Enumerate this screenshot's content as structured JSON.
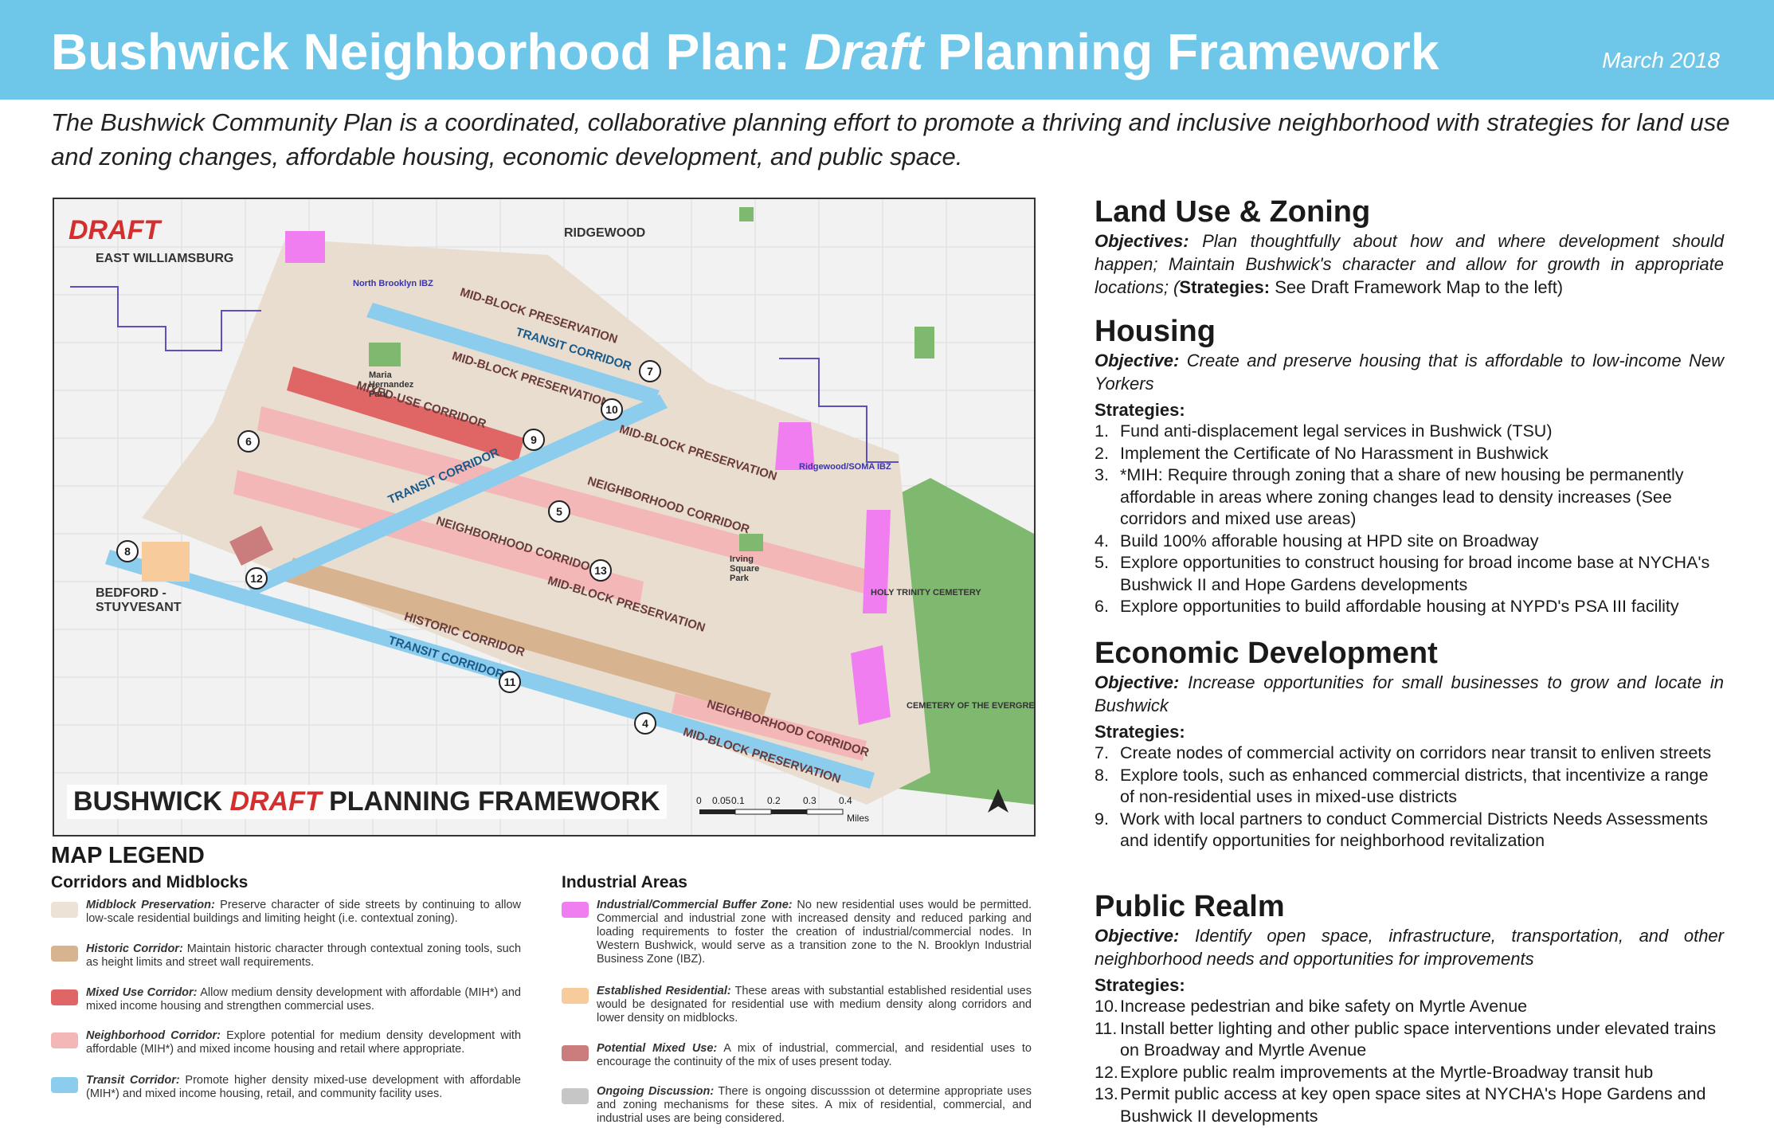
{
  "header": {
    "title_pre": "Bushwick Neighborhood Plan: ",
    "title_em": "Draft",
    "title_post": " Planning Framework",
    "date": "March 2018"
  },
  "intro": "The Bushwick Community Plan is a coordinated, collaborative planning effort to promote a thriving and inclusive neighborhood with strategies for land use and zoning changes, affordable housing, economic development, and public space.",
  "map": {
    "draft_tag": "DRAFT",
    "footer_pre": "BUSHWICK ",
    "footer_em": "DRAFT",
    "footer_post": " PLANNING FRAMEWORK",
    "place_labels": {
      "east_williamsburg": "EAST WILLIAMSBURG",
      "ridgewood": "RIDGEWOOD",
      "bed_stuy": "BEDFORD - STUYVESANT",
      "cemetery_evergreens": "CEMETERY OF THE EVERGREENS",
      "holy_trinity": "HOLY TRINITY CEMETERY",
      "maria_hernandez": "Maria Hernandez Park",
      "irving_square": "Irving Square Park",
      "ridgewood_soma": "Ridgewood/SOMA IBZ",
      "north_brooklyn_ibz": "North Brooklyn IBZ"
    },
    "corridor_labels": {
      "mid_block_1": "MID-BLOCK PRESERVATION",
      "transit_1": "TRANSIT CORRIDOR",
      "mid_block_2": "MID-BLOCK PRESERVATION",
      "mixed_use": "MIXED-USE CORRIDOR",
      "mid_block_3": "MID-BLOCK PRESERVATION",
      "neighborhood_1": "NEIGHBORHOOD CORRIDOR",
      "transit_2": "TRANSIT CORRIDOR",
      "neighborhood_2": "NEIGHBORHOOD CORRIDOR",
      "mid_block_4": "MID-BLOCK PRESERVATION",
      "historic": "HISTORIC CORRIDOR",
      "transit_3": "TRANSIT CORRIDOR",
      "neighborhood_3": "NEIGHBORHOOD CORRIDOR",
      "mid_block_5": "MID-BLOCK PRESERVATION"
    },
    "markers": [
      "4",
      "5",
      "6",
      "7",
      "8",
      "9",
      "10",
      "11",
      "12",
      "13"
    ],
    "scale": {
      "ticks": [
        "0",
        "0.05",
        "0.1",
        "0.2",
        "0.3",
        "0.4"
      ],
      "unit": "Miles"
    }
  },
  "legend": {
    "heading": "MAP LEGEND",
    "left_sub": "Corridors and Midblocks",
    "right_sub": "Industrial Areas",
    "colors": {
      "midblock": "#ece2d6",
      "historic": "#d7b48f",
      "mixed_use": "#e06565",
      "neighborhood": "#f4b7b7",
      "transit": "#8ccdee",
      "buffer": "#f07ef0",
      "established": "#f8cb9c",
      "potential": "#cb7d7d",
      "ongoing": "#c6c6c6"
    },
    "left_items": [
      {
        "label": "Midblock Preservation:",
        "text": " Preserve character of side streets by continuing to allow low-scale residential buildings and limiting height (i.e. contextual zoning)."
      },
      {
        "label": "Historic Corridor:",
        "text": " Maintain historic character through contextual zoning tools, such as height limits and street wall requirements."
      },
      {
        "label": "Mixed Use Corridor:",
        "text": " Allow medium density development with affordable (MIH*) and mixed income housing and strengthen commercial uses."
      },
      {
        "label": "Neighborhood Corridor:",
        "text": " Explore potential for medium density development with affordable (MIH*) and mixed income housing and retail where appropriate."
      },
      {
        "label": "Transit Corridor:",
        "text": " Promote higher density mixed-use development with affordable (MIH*) and mixed income housing, retail, and community facility uses."
      }
    ],
    "right_items": [
      {
        "label": "Industrial/Commercial Buffer Zone:",
        "text": " No new residential uses would be permitted. Commercial and industrial zone with increased density and reduced parking and loading requirements to foster the creation of industrial/commercial nodes. In Western Bushwick, would serve as a transition zone to the N. Brooklyn Industrial Business Zone (IBZ)."
      },
      {
        "label": "Established Residential:",
        "text": " These areas with substantial established residential uses would be designated for residential use with medium density along corridors and lower density on midblocks."
      },
      {
        "label": "Potential Mixed Use:",
        "text": " A mix of industrial, commercial, and residential uses to encourage the continuity of the mix of uses present today."
      },
      {
        "label": "Ongoing Discussion:",
        "text": " There is ongoing discusssion ot determine appropriate uses and zoning mechanisms for these sites. A mix of residential, commercial, and industrial uses are being considered."
      }
    ]
  },
  "sections": {
    "land_use": {
      "title": "Land Use & Zoning",
      "obj_label": "Objectives:",
      "obj_text": " Plan thoughtfully about how and where development should happen; Maintain Bushwick's character and allow for growth in appropriate locations; (",
      "strat_label": "Strategies:",
      "strat_text": " See Draft Framework Map to the left)"
    },
    "housing": {
      "title": "Housing",
      "obj_label": "Objective:",
      "obj_text": " Create and preserve housing that is affordable to low-income New Yorkers",
      "strat_head": "Strategies:",
      "items": [
        {
          "n": "1.",
          "t": "Fund anti-displacement legal services in Bushwick (TSU)"
        },
        {
          "n": "2.",
          "t": "Implement the Certificate of No Harassment in Bushwick"
        },
        {
          "n": "3.",
          "t": "*MIH: Require through zoning that a share of new housing be permanently affordable in areas where zoning changes lead to density  increases (See corridors and mixed use areas)"
        },
        {
          "n": "4.",
          "t": "Build 100% afforable housing at HPD site on Broadway"
        },
        {
          "n": "5.",
          "t": "Explore opportunities to construct housing for broad income base at NYCHA's Bushwick II and Hope Gardens developments"
        },
        {
          "n": "6.",
          "t": "Explore opportunities to build affordable housing at NYPD's PSA III facility"
        }
      ]
    },
    "economic": {
      "title": "Economic Development",
      "obj_label": "Objective:",
      "obj_text": " Increase opportunities for small businesses to grow and locate in Bushwick",
      "strat_head": "Strategies:",
      "items": [
        {
          "n": "7.",
          "t": "Create nodes of commercial activity on corridors near transit to enliven streets"
        },
        {
          "n": "8.",
          "t": "Explore tools, such as enhanced commercial districts, that incentivize a range of non-residential uses in mixed-use districts"
        },
        {
          "n": "9.",
          "t": "Work with local partners to conduct Commercial Districts Needs Assessments and identify opportunities for neighborhood revitalization"
        }
      ]
    },
    "public": {
      "title": "Public Realm",
      "obj_label": "Objective:",
      "obj_text": " Identify open space, infrastructure, transportation, and other neighborhood needs and opportunities for improvements",
      "strat_head": "Strategies:",
      "items": [
        {
          "n": "10.",
          "t": "Increase pedestrian and bike safety on Myrtle Avenue"
        },
        {
          "n": "11.",
          "t": "Install better lighting and other public space interventions under elevated trains on Broadway and Myrtle Avenue"
        },
        {
          "n": "12.",
          "t": "Explore public realm improvements at the Myrtle-Broadway transit hub"
        },
        {
          "n": "13.",
          "t": "Permit public access at key open space sites at NYCHA's Hope Gardens and Bushwick II developments"
        }
      ]
    }
  }
}
